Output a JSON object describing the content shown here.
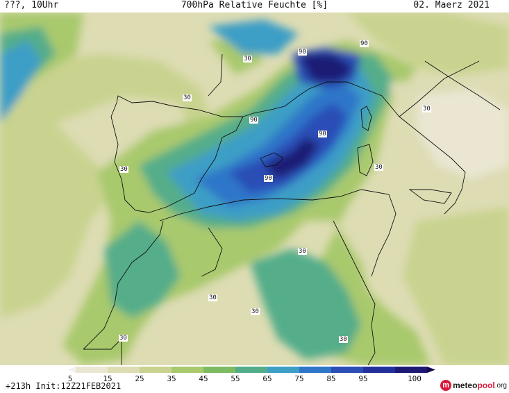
{
  "header": {
    "left": "???, 10Uhr",
    "title": "700hPa Relative Feuchte [%]",
    "right": "02. Maerz 2021"
  },
  "map": {
    "contour_labels": [
      "30",
      "30",
      "30",
      "30",
      "30",
      "30",
      "30",
      "30",
      "30",
      "30",
      "90",
      "90",
      "90",
      "90",
      "90"
    ]
  },
  "legend": {
    "ticks": [
      "5",
      "15",
      "25",
      "35",
      "45",
      "55",
      "65",
      "75",
      "85",
      "95",
      "100"
    ],
    "colors": [
      "#f1f1f1",
      "#eae6d2",
      "#dddcb3",
      "#c9d38f",
      "#a9c96d",
      "#7dbb62",
      "#54ad8a",
      "#3d9ec6",
      "#2f76c9",
      "#2a4db6",
      "#23309b",
      "#1c1a74",
      "#14084e"
    ]
  },
  "footer": {
    "run": "+213h Init:12Z21FEB2021",
    "logo_part1": "meteo",
    "logo_part2": "pool",
    "logo_part3": ".org"
  }
}
